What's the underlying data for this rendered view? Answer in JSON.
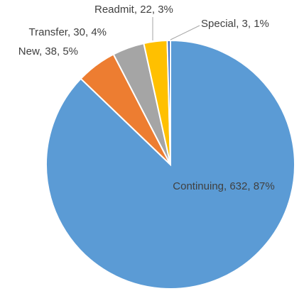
{
  "chart_data": {
    "type": "pie",
    "values": [
      632,
      38,
      30,
      22,
      3
    ],
    "value_labels": [
      "Continuing, 632, 87%",
      "New, 38, 5%",
      "Transfer, 30, 4%",
      "Readmit, 22, 3%",
      "Special, 3, 1%"
    ],
    "colors": [
      "#5b9bd5",
      "#ed7d31",
      "#a5a5a5",
      "#ffc000",
      "#4472c4"
    ]
  }
}
